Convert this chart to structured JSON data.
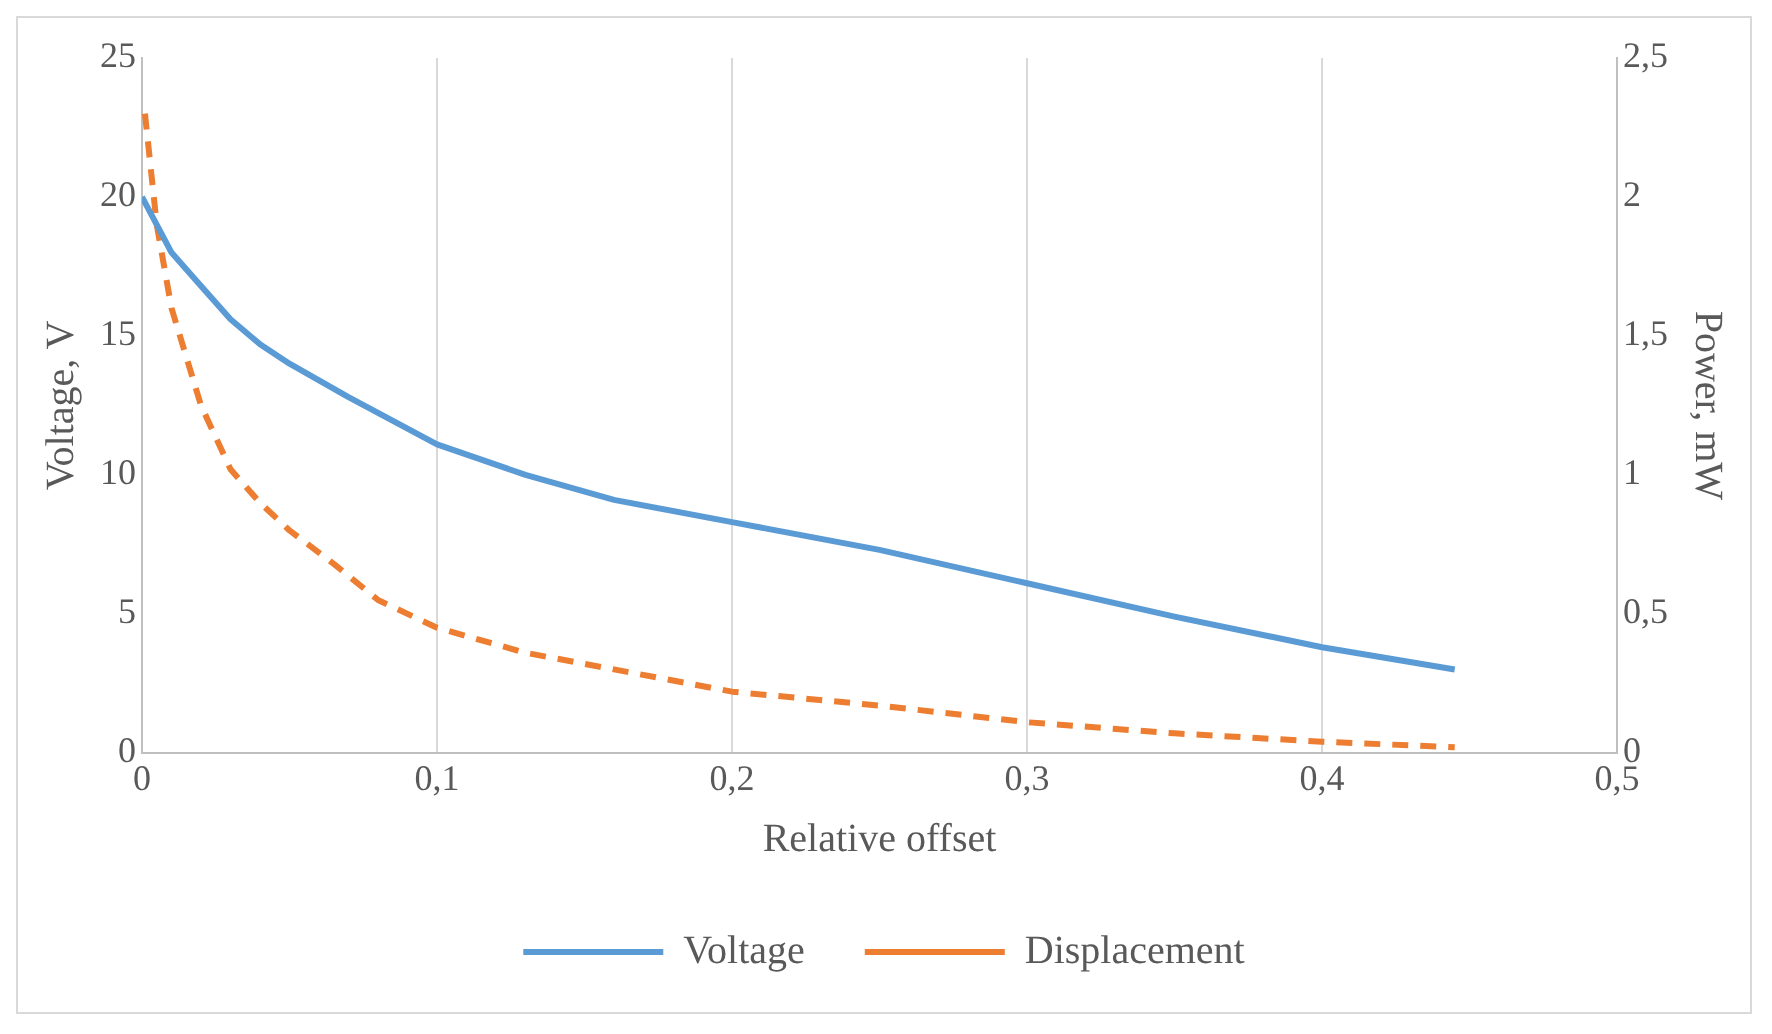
{
  "chart_data": {
    "type": "line",
    "xlabel": "Relative offset",
    "ylabel": "Voltage, V",
    "y2label": "Power, mW",
    "xlim": [
      0,
      0.5
    ],
    "xticks": [
      0,
      {
        "value": 0.1,
        "label": "0,1"
      },
      {
        "value": 0.2,
        "label": "0,2"
      },
      {
        "value": 0.3,
        "label": "0,3"
      },
      {
        "value": 0.4,
        "label": "0,4"
      },
      {
        "value": 0.5,
        "label": "0,5"
      }
    ],
    "ylim": [
      0,
      25
    ],
    "yticks": [
      0,
      5,
      10,
      15,
      20,
      25
    ],
    "y2lim": [
      0,
      2.5
    ],
    "y2ticks": [
      0,
      {
        "value": 0.5,
        "label": "0,5"
      },
      1,
      {
        "value": 1.5,
        "label": "1,5"
      },
      2,
      {
        "value": 2.5,
        "label": "2,5"
      }
    ],
    "grid": "x",
    "legend": "bottom",
    "marker": "none",
    "series": [
      {
        "name": "Voltage",
        "color": "#5b9bd5",
        "line_style": "solid",
        "x": [
          0,
          0.01,
          0.02,
          0.03,
          0.04,
          0.05,
          0.07,
          0.1,
          0.13,
          0.16,
          0.2,
          0.25,
          0.3,
          0.35,
          0.4,
          0.445
        ],
        "values": [
          20,
          18,
          16.8,
          15.6,
          14.7,
          14,
          12.8,
          11.1,
          10,
          9.1,
          8.3,
          7.3,
          6.1,
          4.9,
          3.8,
          3
        ]
      },
      {
        "name": "Displacement",
        "color": "#ed7d31",
        "line_style": "dashed",
        "axis": "y2",
        "x": [
          0.001,
          0.005,
          0.01,
          0.02,
          0.03,
          0.04,
          0.05,
          0.065,
          0.08,
          0.1,
          0.13,
          0.16,
          0.2,
          0.25,
          0.3,
          0.35,
          0.4,
          0.445
        ],
        "values": [
          2.3,
          1.9,
          1.6,
          1.25,
          1.02,
          0.9,
          0.8,
          0.68,
          0.55,
          0.45,
          0.36,
          0.3,
          0.22,
          0.17,
          0.11,
          0.07,
          0.04,
          0.02
        ]
      }
    ]
  }
}
